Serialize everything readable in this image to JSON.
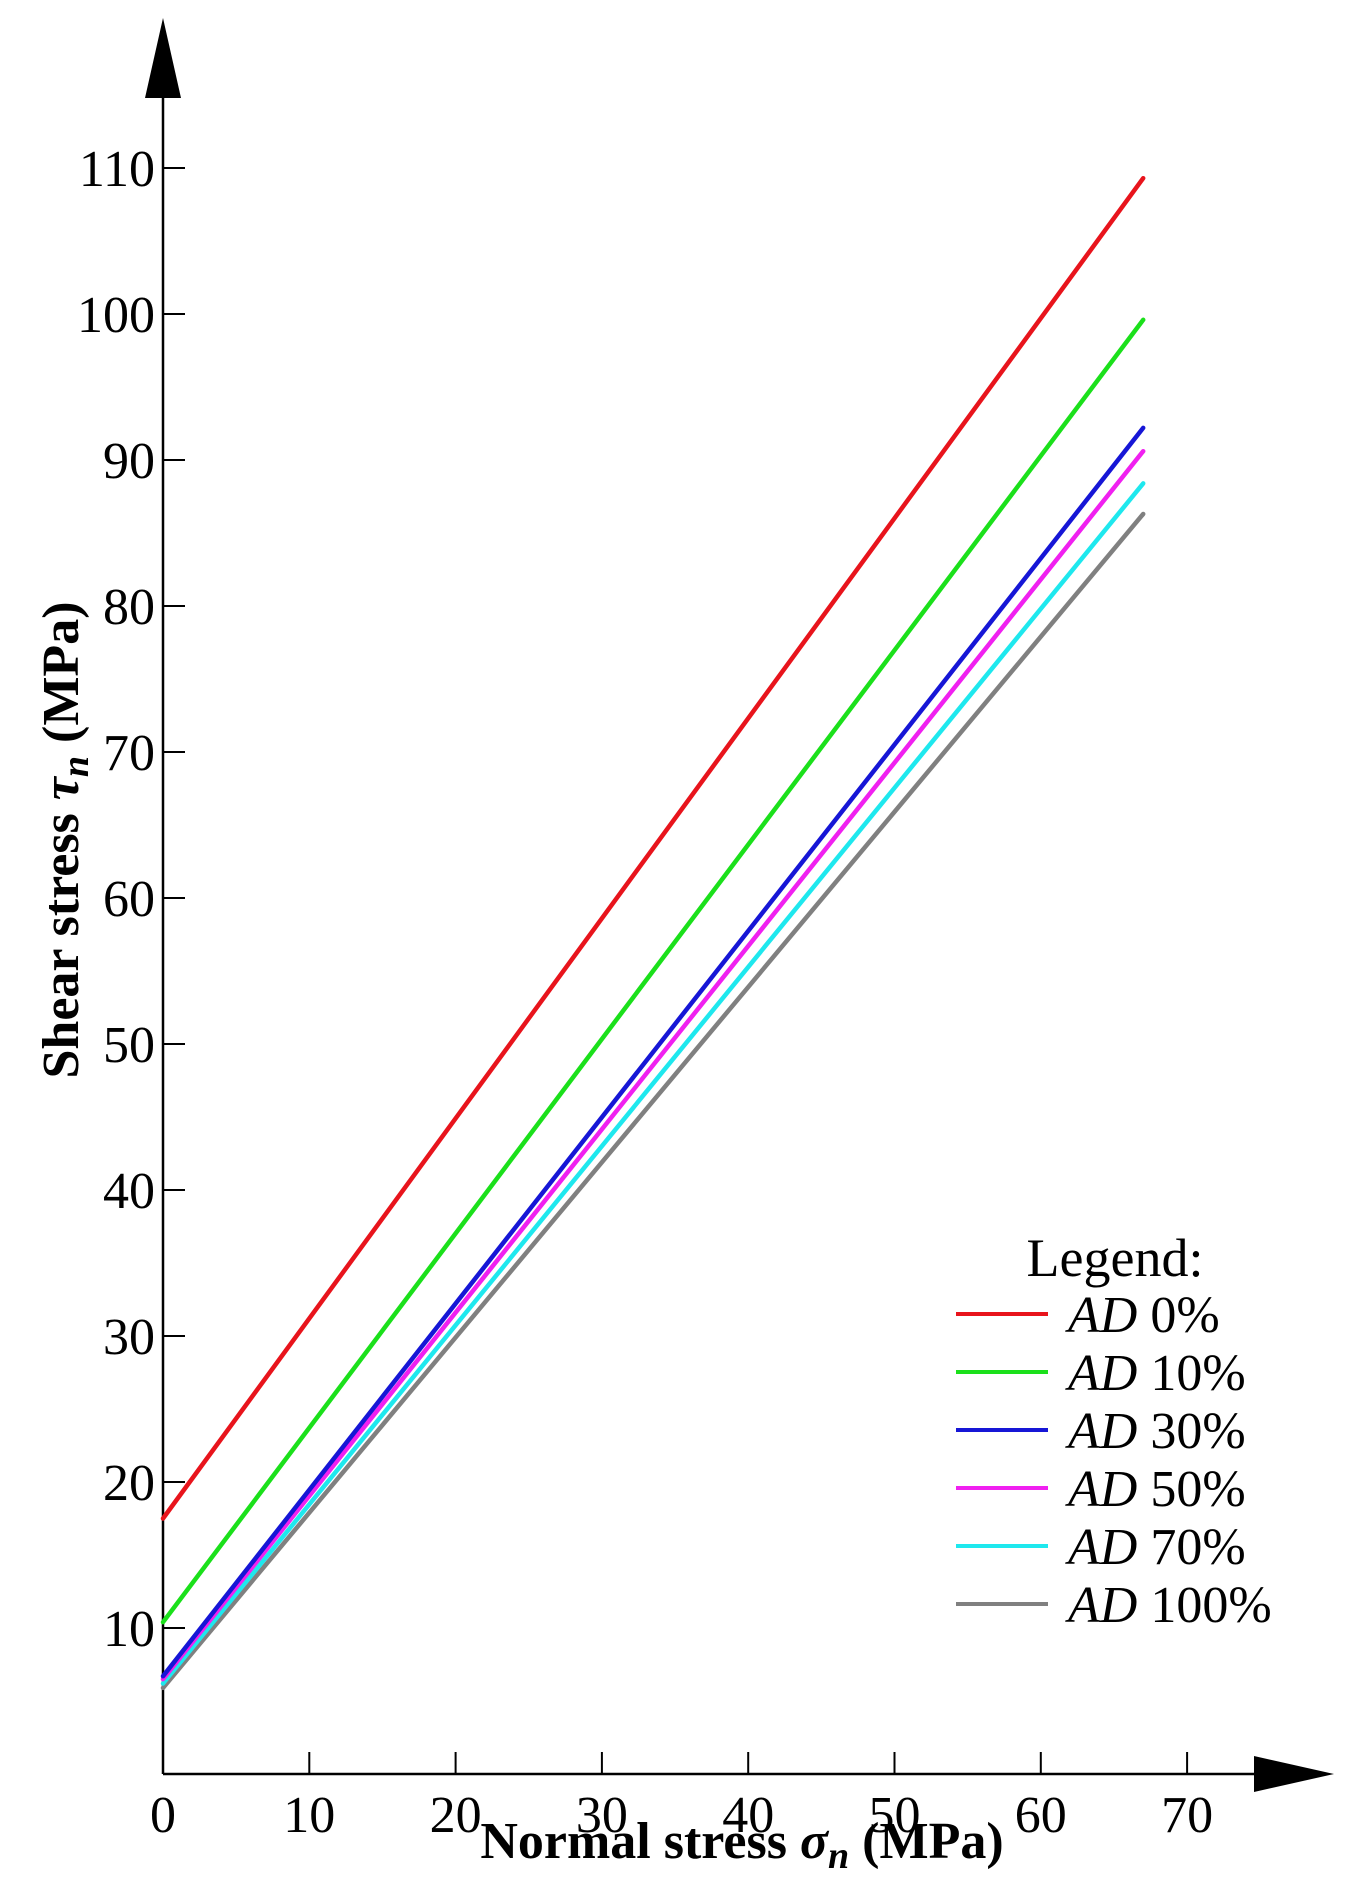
{
  "chart_data": {
    "type": "line",
    "xlabel": {
      "prefix": "Normal stress ",
      "symbol": "σ",
      "sub": "n",
      "suffix": " (MPa)"
    },
    "ylabel": {
      "prefix": "Shear stress ",
      "symbol": "τ",
      "sub": "n",
      "suffix": " (MPa)"
    },
    "xlim": [
      0,
      70
    ],
    "ylim": [
      0,
      110
    ],
    "x_ticks": [
      0,
      10,
      20,
      30,
      40,
      50,
      60,
      70
    ],
    "x_tick_labels": [
      "0",
      "10",
      "20",
      "30",
      "40",
      "50",
      "60",
      "70"
    ],
    "y_ticks": [
      10,
      20,
      30,
      40,
      50,
      60,
      70,
      80,
      90,
      100,
      110
    ],
    "y_tick_labels": [
      "10",
      "20",
      "30",
      "40",
      "50",
      "60",
      "70",
      "80",
      "90",
      "100",
      "110"
    ],
    "grid": false,
    "legend": {
      "title": "Legend:",
      "placement": "lower-right"
    },
    "series": [
      {
        "name": "AD 0%",
        "name_italic": "AD",
        "name_rest": " 0%",
        "color": "#e8141c",
        "x": [
          0,
          67
        ],
        "y": [
          17.5,
          109.3
        ]
      },
      {
        "name": "AD 10%",
        "name_italic": "AD",
        "name_rest": " 10%",
        "color": "#1be01b",
        "x": [
          0,
          67
        ],
        "y": [
          10.4,
          99.6
        ]
      },
      {
        "name": "AD 30%",
        "name_italic": "AD",
        "name_rest": " 30%",
        "color": "#1616d6",
        "x": [
          0,
          67
        ],
        "y": [
          6.7,
          92.2
        ]
      },
      {
        "name": "AD 50%",
        "name_italic": "AD",
        "name_rest": " 50%",
        "color": "#f020f0",
        "x": [
          0,
          67
        ],
        "y": [
          6.5,
          90.6
        ]
      },
      {
        "name": "AD 70%",
        "name_italic": "AD",
        "name_rest": " 70%",
        "color": "#1ee8ee",
        "x": [
          0,
          67
        ],
        "y": [
          6.2,
          88.4
        ]
      },
      {
        "name": "AD 100%",
        "name_italic": "AD",
        "name_rest": " 100%",
        "color": "#808080",
        "x": [
          0,
          67
        ],
        "y": [
          5.9,
          86.3
        ]
      }
    ]
  }
}
